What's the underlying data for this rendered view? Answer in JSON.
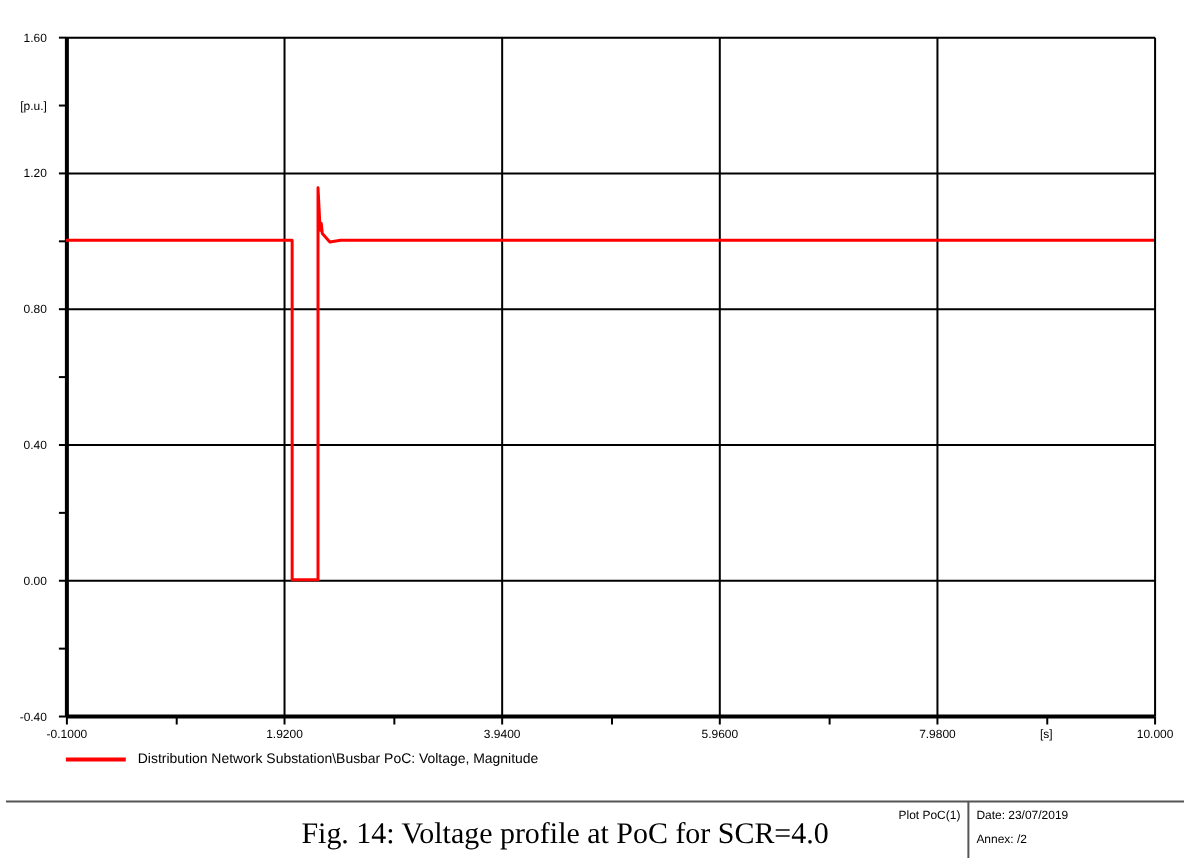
{
  "chart_data": {
    "type": "line",
    "x": [
      -0.1,
      2.0,
      2.0,
      2.24,
      2.24,
      2.26,
      2.27,
      2.28,
      2.35,
      2.45,
      10.0
    ],
    "series": [
      {
        "name": "Distribution Network Substation\\Busbar PoC: Voltage, Magnitude",
        "color": "#ff0000",
        "values": [
          1.0,
          1.0,
          0.0,
          0.0,
          1.155,
          1.03,
          1.05,
          1.02,
          0.995,
          1.0,
          1.0
        ]
      }
    ],
    "xlim": [
      -0.1,
      10.0
    ],
    "xticks": [
      {
        "value": -0.1,
        "label": "-0.1000"
      },
      {
        "value": 0.91,
        "label": null
      },
      {
        "value": 1.92,
        "label": "1.9200"
      },
      {
        "value": 2.93,
        "label": null
      },
      {
        "value": 3.94,
        "label": "3.9400"
      },
      {
        "value": 4.95,
        "label": null
      },
      {
        "value": 5.96,
        "label": "5.9600"
      },
      {
        "value": 6.97,
        "label": null
      },
      {
        "value": 7.98,
        "label": "7.9800"
      },
      {
        "value": 8.99,
        "label": "[s]"
      },
      {
        "value": 10.0,
        "label": "10.000"
      }
    ],
    "ylim": [
      -0.4,
      1.6
    ],
    "yticks": [
      {
        "value": -0.4,
        "label": "-0.40"
      },
      {
        "value": -0.2,
        "label": null
      },
      {
        "value": 0.0,
        "label": "0.00"
      },
      {
        "value": 0.2,
        "label": null
      },
      {
        "value": 0.4,
        "label": "0.40"
      },
      {
        "value": 0.6,
        "label": null
      },
      {
        "value": 0.8,
        "label": "0.80"
      },
      {
        "value": 1.0,
        "label": null
      },
      {
        "value": 1.2,
        "label": "1.20"
      },
      {
        "value": 1.4,
        "label": "[p.u.]"
      },
      {
        "value": 1.6,
        "label": "1.60"
      }
    ],
    "grid": true,
    "legend": "bottom",
    "marker": "none",
    "line_style": "solid",
    "annotations": [
      "Fig. 14: Voltage profile at PoC for SCR=4.0",
      "Plot PoC(1)",
      "Date: 23/07/2019",
      "Annex: /2"
    ]
  }
}
